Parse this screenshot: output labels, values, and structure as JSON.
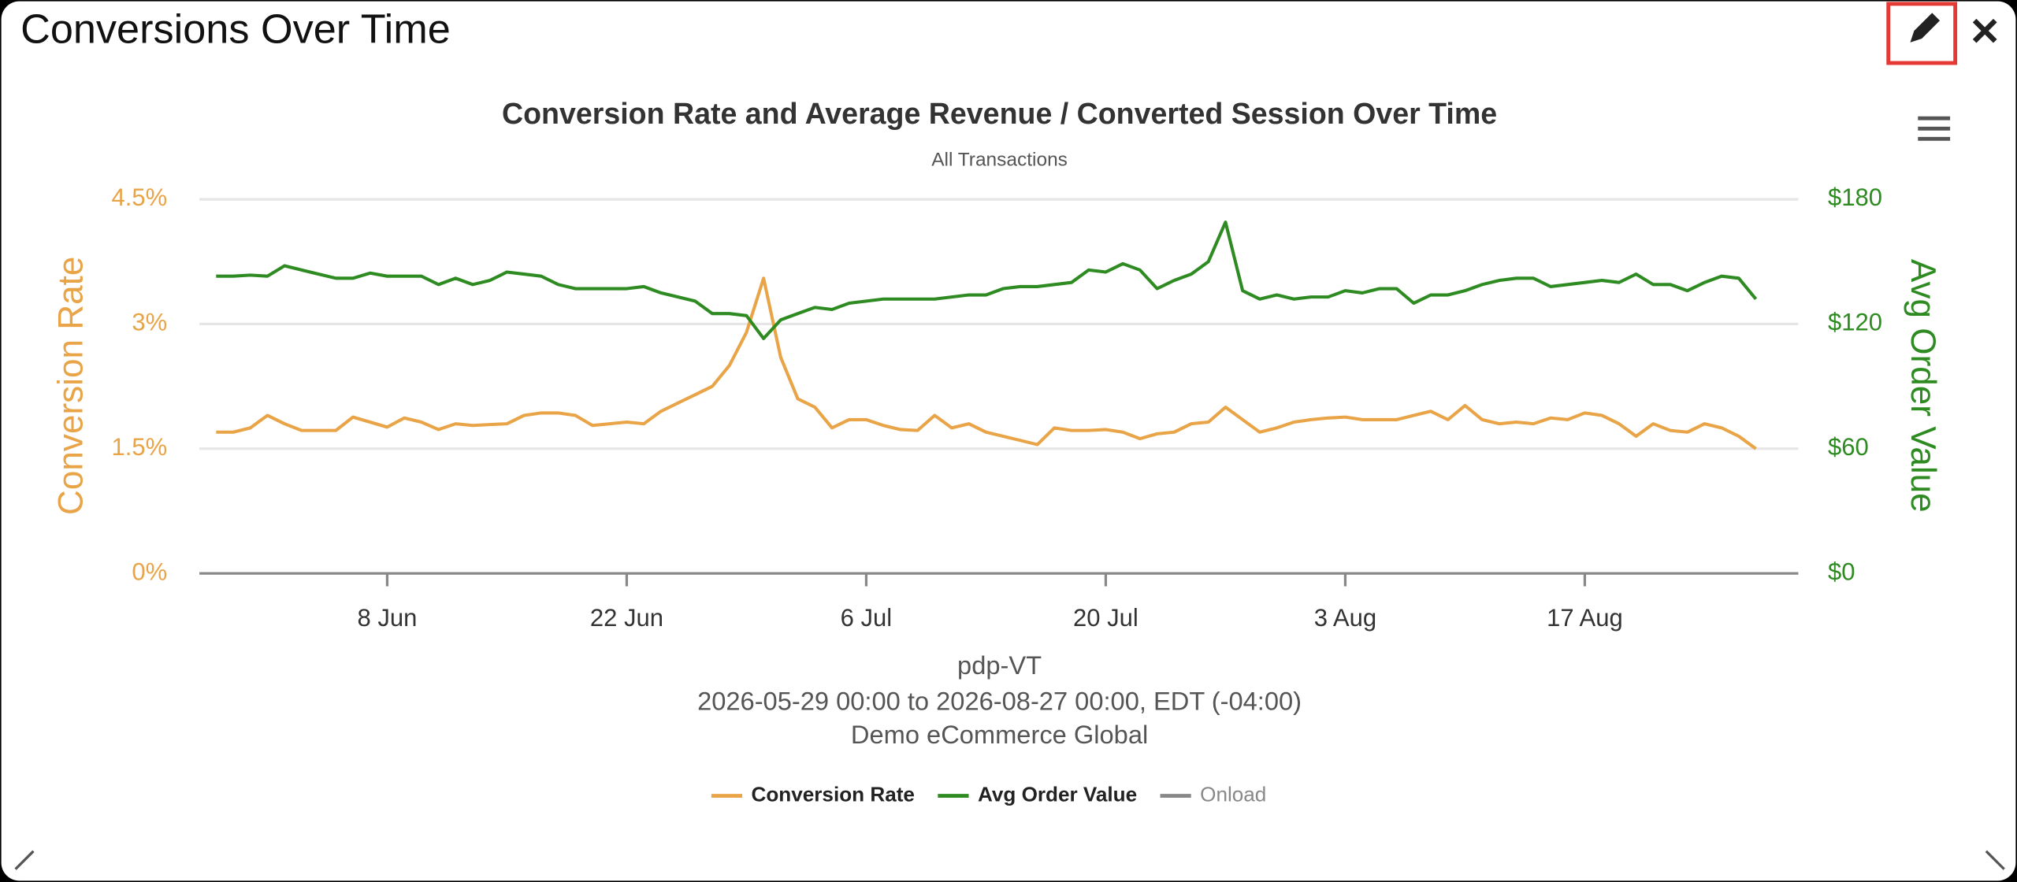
{
  "header": {
    "title": "Conversions Over Time"
  },
  "chart_data": {
    "type": "line",
    "title": "Conversion Rate and Average Revenue / Converted Session Over Time",
    "subtitle": "All Transactions",
    "x_label": "pdp-VT",
    "captions": [
      "2026-05-29 00:00 to 2026-08-27 00:00, EDT (-04:00)",
      "Demo eCommerce Global"
    ],
    "y_label": "Conversion Rate",
    "y2_label": "Avg Order Value",
    "x": [
      "29 May",
      "30 May",
      "31 May",
      "1 Jun",
      "2 Jun",
      "3 Jun",
      "4 Jun",
      "5 Jun",
      "6 Jun",
      "7 Jun",
      "8 Jun",
      "9 Jun",
      "10 Jun",
      "11 Jun",
      "12 Jun",
      "13 Jun",
      "14 Jun",
      "15 Jun",
      "16 Jun",
      "17 Jun",
      "18 Jun",
      "19 Jun",
      "20 Jun",
      "21 Jun",
      "22 Jun",
      "23 Jun",
      "24 Jun",
      "25 Jun",
      "26 Jun",
      "27 Jun",
      "28 Jun",
      "29 Jun",
      "30 Jun",
      "1 Jul",
      "2 Jul",
      "3 Jul",
      "4 Jul",
      "5 Jul",
      "6 Jul",
      "7 Jul",
      "8 Jul",
      "9 Jul",
      "10 Jul",
      "11 Jul",
      "12 Jul",
      "13 Jul",
      "14 Jul",
      "15 Jul",
      "16 Jul",
      "17 Jul",
      "18 Jul",
      "19 Jul",
      "20 Jul",
      "21 Jul",
      "22 Jul",
      "23 Jul",
      "24 Jul",
      "25 Jul",
      "26 Jul",
      "27 Jul",
      "28 Jul",
      "29 Jul",
      "30 Jul",
      "31 Jul",
      "1 Aug",
      "2 Aug",
      "3 Aug",
      "4 Aug",
      "5 Aug",
      "6 Aug",
      "7 Aug",
      "8 Aug",
      "9 Aug",
      "10 Aug",
      "11 Aug",
      "12 Aug",
      "13 Aug",
      "14 Aug",
      "15 Aug",
      "16 Aug",
      "17 Aug",
      "18 Aug",
      "19 Aug",
      "20 Aug",
      "21 Aug",
      "22 Aug",
      "23 Aug",
      "24 Aug",
      "25 Aug",
      "26 Aug",
      "27 Aug"
    ],
    "xticks": [
      "8 Jun",
      "22 Jun",
      "6 Jul",
      "20 Jul",
      "3 Aug",
      "17 Aug"
    ],
    "ylim": [
      0,
      4.5
    ],
    "yticks": [
      {
        "value": 0,
        "label": "0%"
      },
      {
        "value": 1.5,
        "label": "1.5%"
      },
      {
        "value": 3,
        "label": "3%"
      },
      {
        "value": 4.5,
        "label": "4.5%"
      }
    ],
    "y2lim": [
      0,
      180
    ],
    "y2ticks": [
      {
        "value": 0,
        "label": "$0"
      },
      {
        "value": 60,
        "label": "$60"
      },
      {
        "value": 120,
        "label": "$120"
      },
      {
        "value": 180,
        "label": "$180"
      }
    ],
    "grid": true,
    "legend": "bottom",
    "series": [
      {
        "name": "Conversion Rate",
        "color": "#e8a447",
        "values": [
          1.7,
          1.7,
          1.75,
          1.9,
          1.8,
          1.72,
          1.72,
          1.72,
          1.88,
          1.82,
          1.76,
          1.87,
          1.82,
          1.73,
          1.8,
          1.78,
          1.79,
          1.8,
          1.9,
          1.93,
          1.93,
          1.9,
          1.78,
          1.8,
          1.82,
          1.8,
          1.95,
          2.05,
          2.15,
          2.25,
          2.5,
          2.9,
          3.55,
          2.6,
          2.1,
          2.0,
          1.75,
          1.85,
          1.85,
          1.78,
          1.73,
          1.72,
          1.9,
          1.75,
          1.8,
          1.7,
          1.65,
          1.6,
          1.55,
          1.75,
          1.72,
          1.72,
          1.73,
          1.7,
          1.62,
          1.68,
          1.7,
          1.8,
          1.82,
          2.0,
          1.85,
          1.7,
          1.75,
          1.82,
          1.85,
          1.87,
          1.88,
          1.85,
          1.85,
          1.85,
          1.9,
          1.95,
          1.85,
          2.02,
          1.85,
          1.8,
          1.82,
          1.8,
          1.87,
          1.85,
          1.93,
          1.9,
          1.8,
          1.65,
          1.8,
          1.72,
          1.7,
          1.8,
          1.75,
          1.65,
          1.5
        ]
      },
      {
        "name": "Avg Order Value",
        "color": "#2e8b22",
        "axis": "y2",
        "values": [
          143,
          143,
          143.5,
          143,
          148,
          146,
          144,
          142,
          142,
          144.5,
          143,
          143,
          143,
          139,
          142,
          139,
          141,
          145,
          144,
          143,
          139,
          137,
          137,
          137,
          137,
          138,
          135,
          133,
          131,
          125,
          125,
          124,
          113,
          122,
          125,
          128,
          127,
          130,
          131,
          132,
          132,
          132,
          132,
          133,
          134,
          134,
          137,
          138,
          138,
          139,
          140,
          146,
          145,
          149,
          146,
          137,
          141,
          144,
          150,
          169,
          136,
          132,
          134,
          132,
          133,
          133,
          136,
          135,
          137,
          137,
          130,
          134,
          134,
          136,
          139,
          141,
          142,
          142,
          138,
          139,
          140,
          141,
          140,
          144,
          139,
          139,
          136,
          140,
          143,
          142,
          132
        ]
      },
      {
        "name": "Onload",
        "color": "#888888",
        "visible": false,
        "values": [
          null,
          null,
          null,
          null,
          null,
          null,
          null,
          null,
          null,
          null,
          null,
          null,
          null,
          null,
          null,
          null,
          null,
          null,
          null,
          null,
          null,
          null,
          null,
          null,
          null,
          null,
          null,
          null,
          null,
          null,
          null,
          null,
          null,
          null,
          null,
          null,
          null,
          null,
          null,
          null,
          null,
          null,
          null,
          null,
          null,
          null,
          null,
          null,
          null,
          null,
          null,
          null,
          null,
          null,
          null,
          null,
          null,
          null,
          null,
          null,
          null,
          null,
          null,
          null,
          null,
          null,
          null,
          null,
          null,
          null,
          null,
          null,
          null,
          null,
          null,
          null,
          null,
          null,
          null,
          null,
          null,
          null,
          null,
          null,
          null,
          null,
          null,
          null,
          null,
          null,
          null
        ]
      }
    ]
  }
}
